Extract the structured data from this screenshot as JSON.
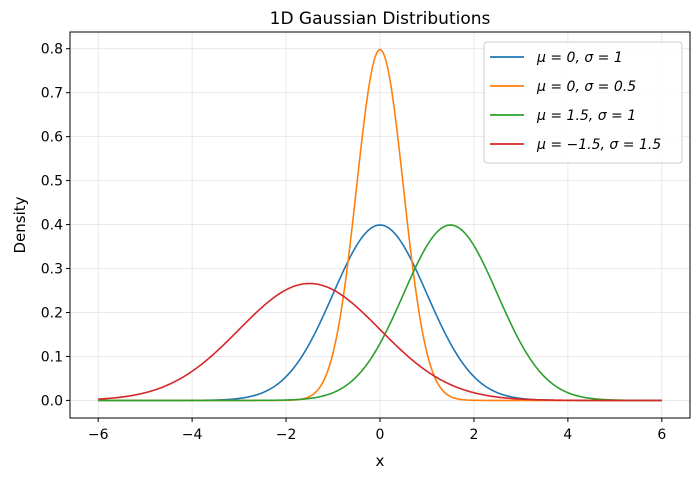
{
  "chart_data": {
    "type": "line",
    "title": "1D Gaussian Distributions",
    "xlabel": "x",
    "ylabel": "Density",
    "xlim": [
      -6.6,
      6.6
    ],
    "ylim": [
      -0.04,
      0.838
    ],
    "x_range": [
      -6,
      6
    ],
    "xticks": [
      -6,
      -4,
      -2,
      0,
      2,
      4,
      6
    ],
    "xtick_labels": [
      "−6",
      "−4",
      "−2",
      "0",
      "2",
      "4",
      "6"
    ],
    "yticks": [
      0.0,
      0.1,
      0.2,
      0.3,
      0.4,
      0.5,
      0.6,
      0.7,
      0.8
    ],
    "ytick_labels": [
      "0.0",
      "0.1",
      "0.2",
      "0.3",
      "0.4",
      "0.5",
      "0.6",
      "0.7",
      "0.8"
    ],
    "grid": true,
    "legend_position": "top-right",
    "series": [
      {
        "name": "μ = 0, σ = 1",
        "mu": 0,
        "sigma": 1,
        "color": "#1f77b4",
        "peak": 0.399
      },
      {
        "name": "μ = 0, σ = 0.5",
        "mu": 0,
        "sigma": 0.5,
        "color": "#ff7f0e",
        "peak": 0.798
      },
      {
        "name": "μ = 1.5, σ = 1",
        "mu": 1.5,
        "sigma": 1,
        "color": "#2ca02c",
        "peak": 0.399
      },
      {
        "name": "μ = −1.5, σ = 1.5",
        "mu": -1.5,
        "sigma": 1.5,
        "color": "#d62728",
        "peak": 0.266
      }
    ]
  }
}
